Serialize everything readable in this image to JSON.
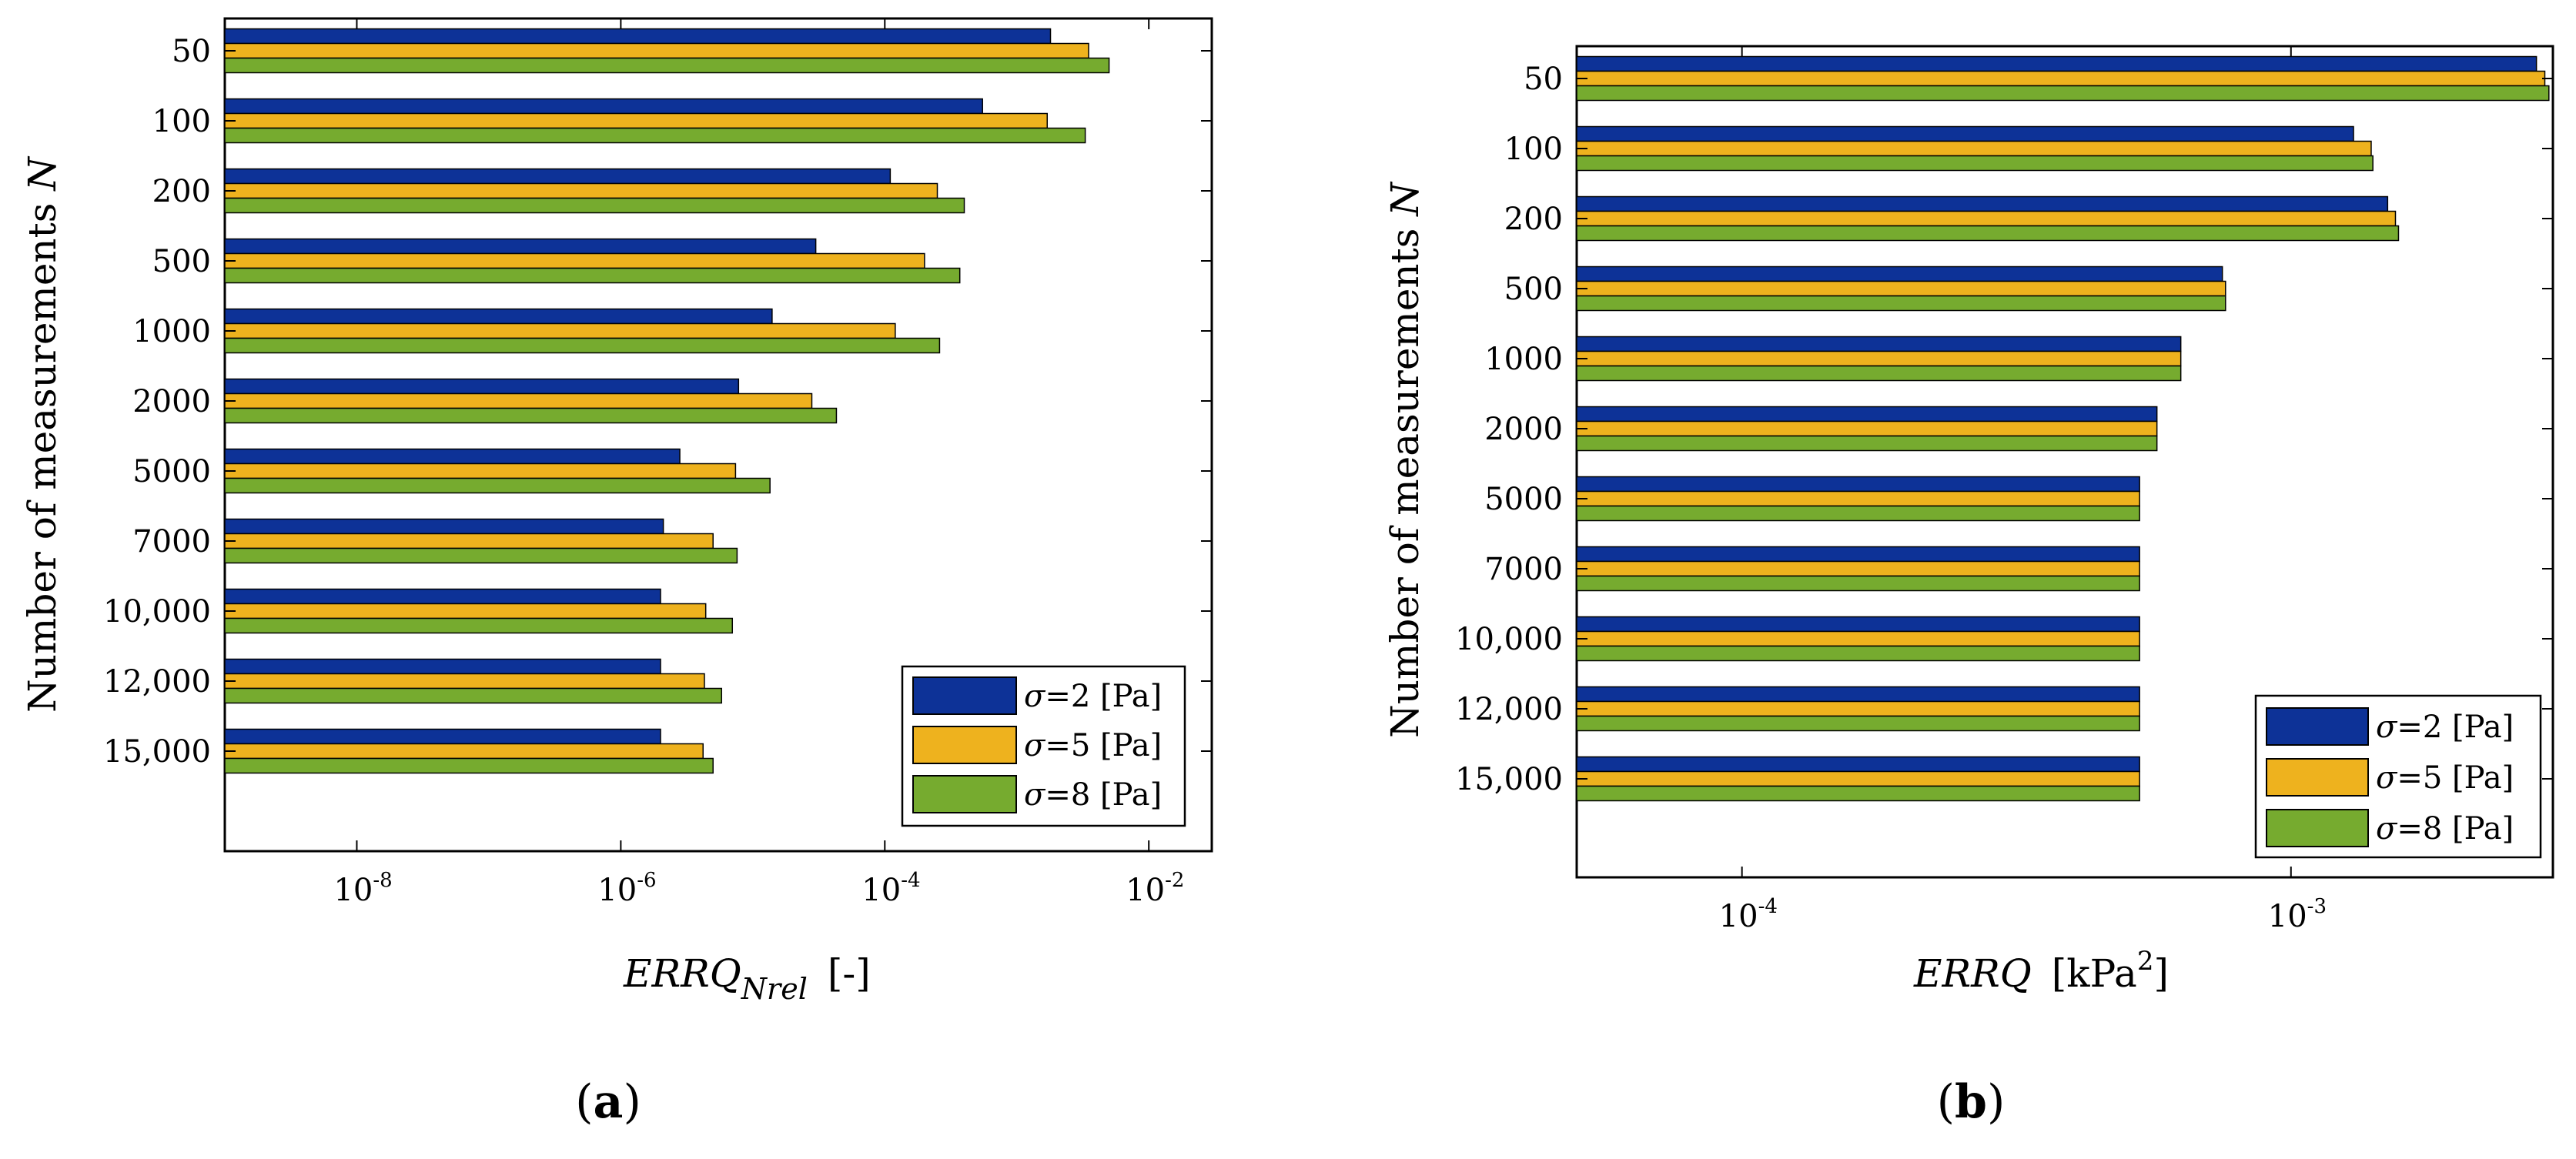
{
  "chart_data": [
    {
      "type": "bar",
      "orientation": "horizontal",
      "panel_label": "(a)",
      "panel_letter": "a",
      "categories": [
        "50",
        "100",
        "200",
        "500",
        "1000",
        "2000",
        "5000",
        "7000",
        "10,000",
        "12,000",
        "15,000"
      ],
      "series": [
        {
          "name": "σ=2 [Pa]",
          "sigma": "2",
          "values": [
            0.0018,
            0.00055,
            0.00011,
            3e-05,
            1.4e-05,
            7.8e-06,
            2.8e-06,
            2.1e-06,
            2e-06,
            2e-06,
            2e-06
          ]
        },
        {
          "name": "σ=5 [Pa]",
          "sigma": "5",
          "values": [
            0.0035,
            0.0017,
            0.00025,
            0.0002,
            0.00012,
            2.8e-05,
            7.4e-06,
            5e-06,
            4.4e-06,
            4.3e-06,
            4.2e-06
          ]
        },
        {
          "name": "σ=8 [Pa]",
          "sigma": "8",
          "values": [
            0.005,
            0.0033,
            0.0004,
            0.00037,
            0.00026,
            4.3e-05,
            1.35e-05,
            7.6e-06,
            7e-06,
            5.8e-06,
            5e-06
          ]
        }
      ],
      "xscale": "log",
      "xlim": [
        1e-09,
        0.03
      ],
      "xticks": [
        {
          "base": "10",
          "exp": "-8"
        },
        {
          "base": "10",
          "exp": "-6"
        },
        {
          "base": "10",
          "exp": "-4"
        },
        {
          "base": "10",
          "exp": "-2"
        }
      ],
      "xtick_values": [
        1e-08,
        1e-06,
        0.0001,
        0.01
      ],
      "xlabel": {
        "main": "ERRQ",
        "sub": "Nrel",
        "unit": "[-]"
      },
      "ylabel": {
        "text": "Number of measurements ",
        "var": "N"
      },
      "legend_placement": "bottom-right",
      "grid": false
    },
    {
      "type": "bar",
      "orientation": "horizontal",
      "panel_label": "(b)",
      "panel_letter": "b",
      "categories": [
        "50",
        "100",
        "200",
        "500",
        "1000",
        "2000",
        "5000",
        "7000",
        "10,000",
        "12,000",
        "15,000"
      ],
      "series": [
        {
          "name": "σ=2 [Pa]",
          "sigma": "2",
          "values": [
            0.0028,
            0.0013,
            0.0015,
            0.00075,
            0.00063,
            0.00057,
            0.00053,
            0.00053,
            0.00053,
            0.00053,
            0.00053
          ]
        },
        {
          "name": "σ=5 [Pa]",
          "sigma": "5",
          "values": [
            0.0029,
            0.0014,
            0.00155,
            0.00076,
            0.00063,
            0.00057,
            0.00053,
            0.00053,
            0.00053,
            0.00053,
            0.00053
          ]
        },
        {
          "name": "σ=8 [Pa]",
          "sigma": "8",
          "values": [
            0.00295,
            0.00141,
            0.00157,
            0.00076,
            0.00063,
            0.00057,
            0.00053,
            0.00053,
            0.00053,
            0.00053,
            0.00053
          ]
        }
      ],
      "xscale": "log",
      "xlim": [
        5e-05,
        0.003
      ],
      "xticks": [
        {
          "base": "10",
          "exp": "-4"
        },
        {
          "base": "10",
          "exp": "-3"
        }
      ],
      "xtick_values": [
        0.0001,
        0.001
      ],
      "xlabel": {
        "main": "ERRQ",
        "sub": "",
        "unit_base": "[kPa",
        "unit_sup": "2",
        "unit_end": "]"
      },
      "ylabel": {
        "text": "Number of measurements ",
        "var": "N"
      },
      "legend_placement": "bottom-right",
      "grid": false
    }
  ],
  "colors": {
    "sigma2": "#0d3297",
    "sigma5": "#eeb21e",
    "sigma8": "#76ab2f"
  },
  "legend_sigma_symbol": "σ"
}
